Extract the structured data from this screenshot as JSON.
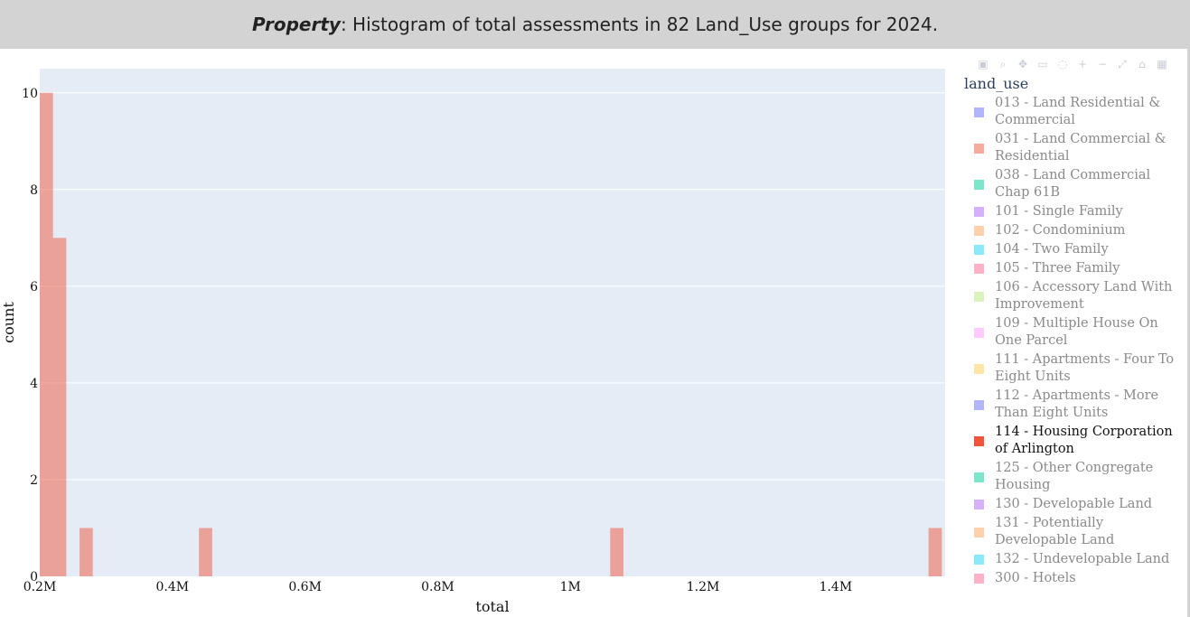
{
  "header": {
    "title_bold": "Property",
    "title_rest": ": Histogram of total assessments in 82 Land_Use groups for 2024."
  },
  "modebar": {
    "icons": [
      "camera-icon",
      "zoom-icon",
      "pan-icon",
      "box-select-icon",
      "lasso-icon",
      "zoom-in-icon",
      "zoom-out-icon",
      "autoscale-icon",
      "reset-icon",
      "plotly-logo-icon"
    ]
  },
  "legend": {
    "title": "land_use",
    "items": [
      {
        "label": "013 - Land Residential & Commercial",
        "color": "#636efa",
        "active": false
      },
      {
        "label": "031 - Land Commercial & Residential",
        "color": "#ef553b",
        "active": false
      },
      {
        "label": "038 - Land Commercial Chap 61B",
        "color": "#00cc96",
        "active": false
      },
      {
        "label": "101 - Single Family",
        "color": "#ab63fa",
        "active": false
      },
      {
        "label": "102 - Condominium",
        "color": "#ffa15a",
        "active": false
      },
      {
        "label": "104 - Two Family",
        "color": "#19d3f3",
        "active": false
      },
      {
        "label": "105 - Three Family",
        "color": "#ff6692",
        "active": false
      },
      {
        "label": "106 - Accessory Land With Improvement",
        "color": "#b6e880",
        "active": false
      },
      {
        "label": "109 - Multiple House On One Parcel",
        "color": "#ff97ff",
        "active": false
      },
      {
        "label": "111 - Apartments - Four To Eight Units",
        "color": "#fecb52",
        "active": false
      },
      {
        "label": "112 - Apartments - More Than Eight Units",
        "color": "#636efa",
        "active": false
      },
      {
        "label": "114 - Housing Corporation of Arlington",
        "color": "#ef553b",
        "active": true
      },
      {
        "label": "125 - Other Congregate Housing",
        "color": "#00cc96",
        "active": false
      },
      {
        "label": "130 - Developable Land",
        "color": "#ab63fa",
        "active": false
      },
      {
        "label": "131 - Potentially Developable Land",
        "color": "#ffa15a",
        "active": false
      },
      {
        "label": "132 - Undevelopable Land",
        "color": "#19d3f3",
        "active": false
      },
      {
        "label": "300 - Hotels",
        "color": "#ff6692",
        "active": false
      }
    ]
  },
  "chart_data": {
    "type": "bar",
    "xlabel": "total",
    "ylabel": "count",
    "x_ticks": [
      {
        "value": 200000,
        "label": "0.2M"
      },
      {
        "value": 400000,
        "label": "0.4M"
      },
      {
        "value": 600000,
        "label": "0.6M"
      },
      {
        "value": 800000,
        "label": "0.8M"
      },
      {
        "value": 1000000,
        "label": "1M"
      },
      {
        "value": 1200000,
        "label": "1.2M"
      },
      {
        "value": 1400000,
        "label": "1.4M"
      }
    ],
    "y_ticks": [
      0,
      2,
      4,
      6,
      8,
      10
    ],
    "xlim": [
      200000,
      1565000
    ],
    "ylim": [
      0,
      10.5
    ],
    "bin_width": 20000,
    "series": [
      {
        "name": "114 - Housing Corporation of Arlington",
        "color": "#ef553b",
        "opacity": 0.5,
        "bins": [
          {
            "x0": 200000,
            "count": 10
          },
          {
            "x0": 220000,
            "count": 7
          },
          {
            "x0": 260000,
            "count": 1
          },
          {
            "x0": 440000,
            "count": 1
          },
          {
            "x0": 1060000,
            "count": 1
          },
          {
            "x0": 1540000,
            "count": 1
          }
        ]
      }
    ],
    "grid": true,
    "legend_position": "right"
  }
}
